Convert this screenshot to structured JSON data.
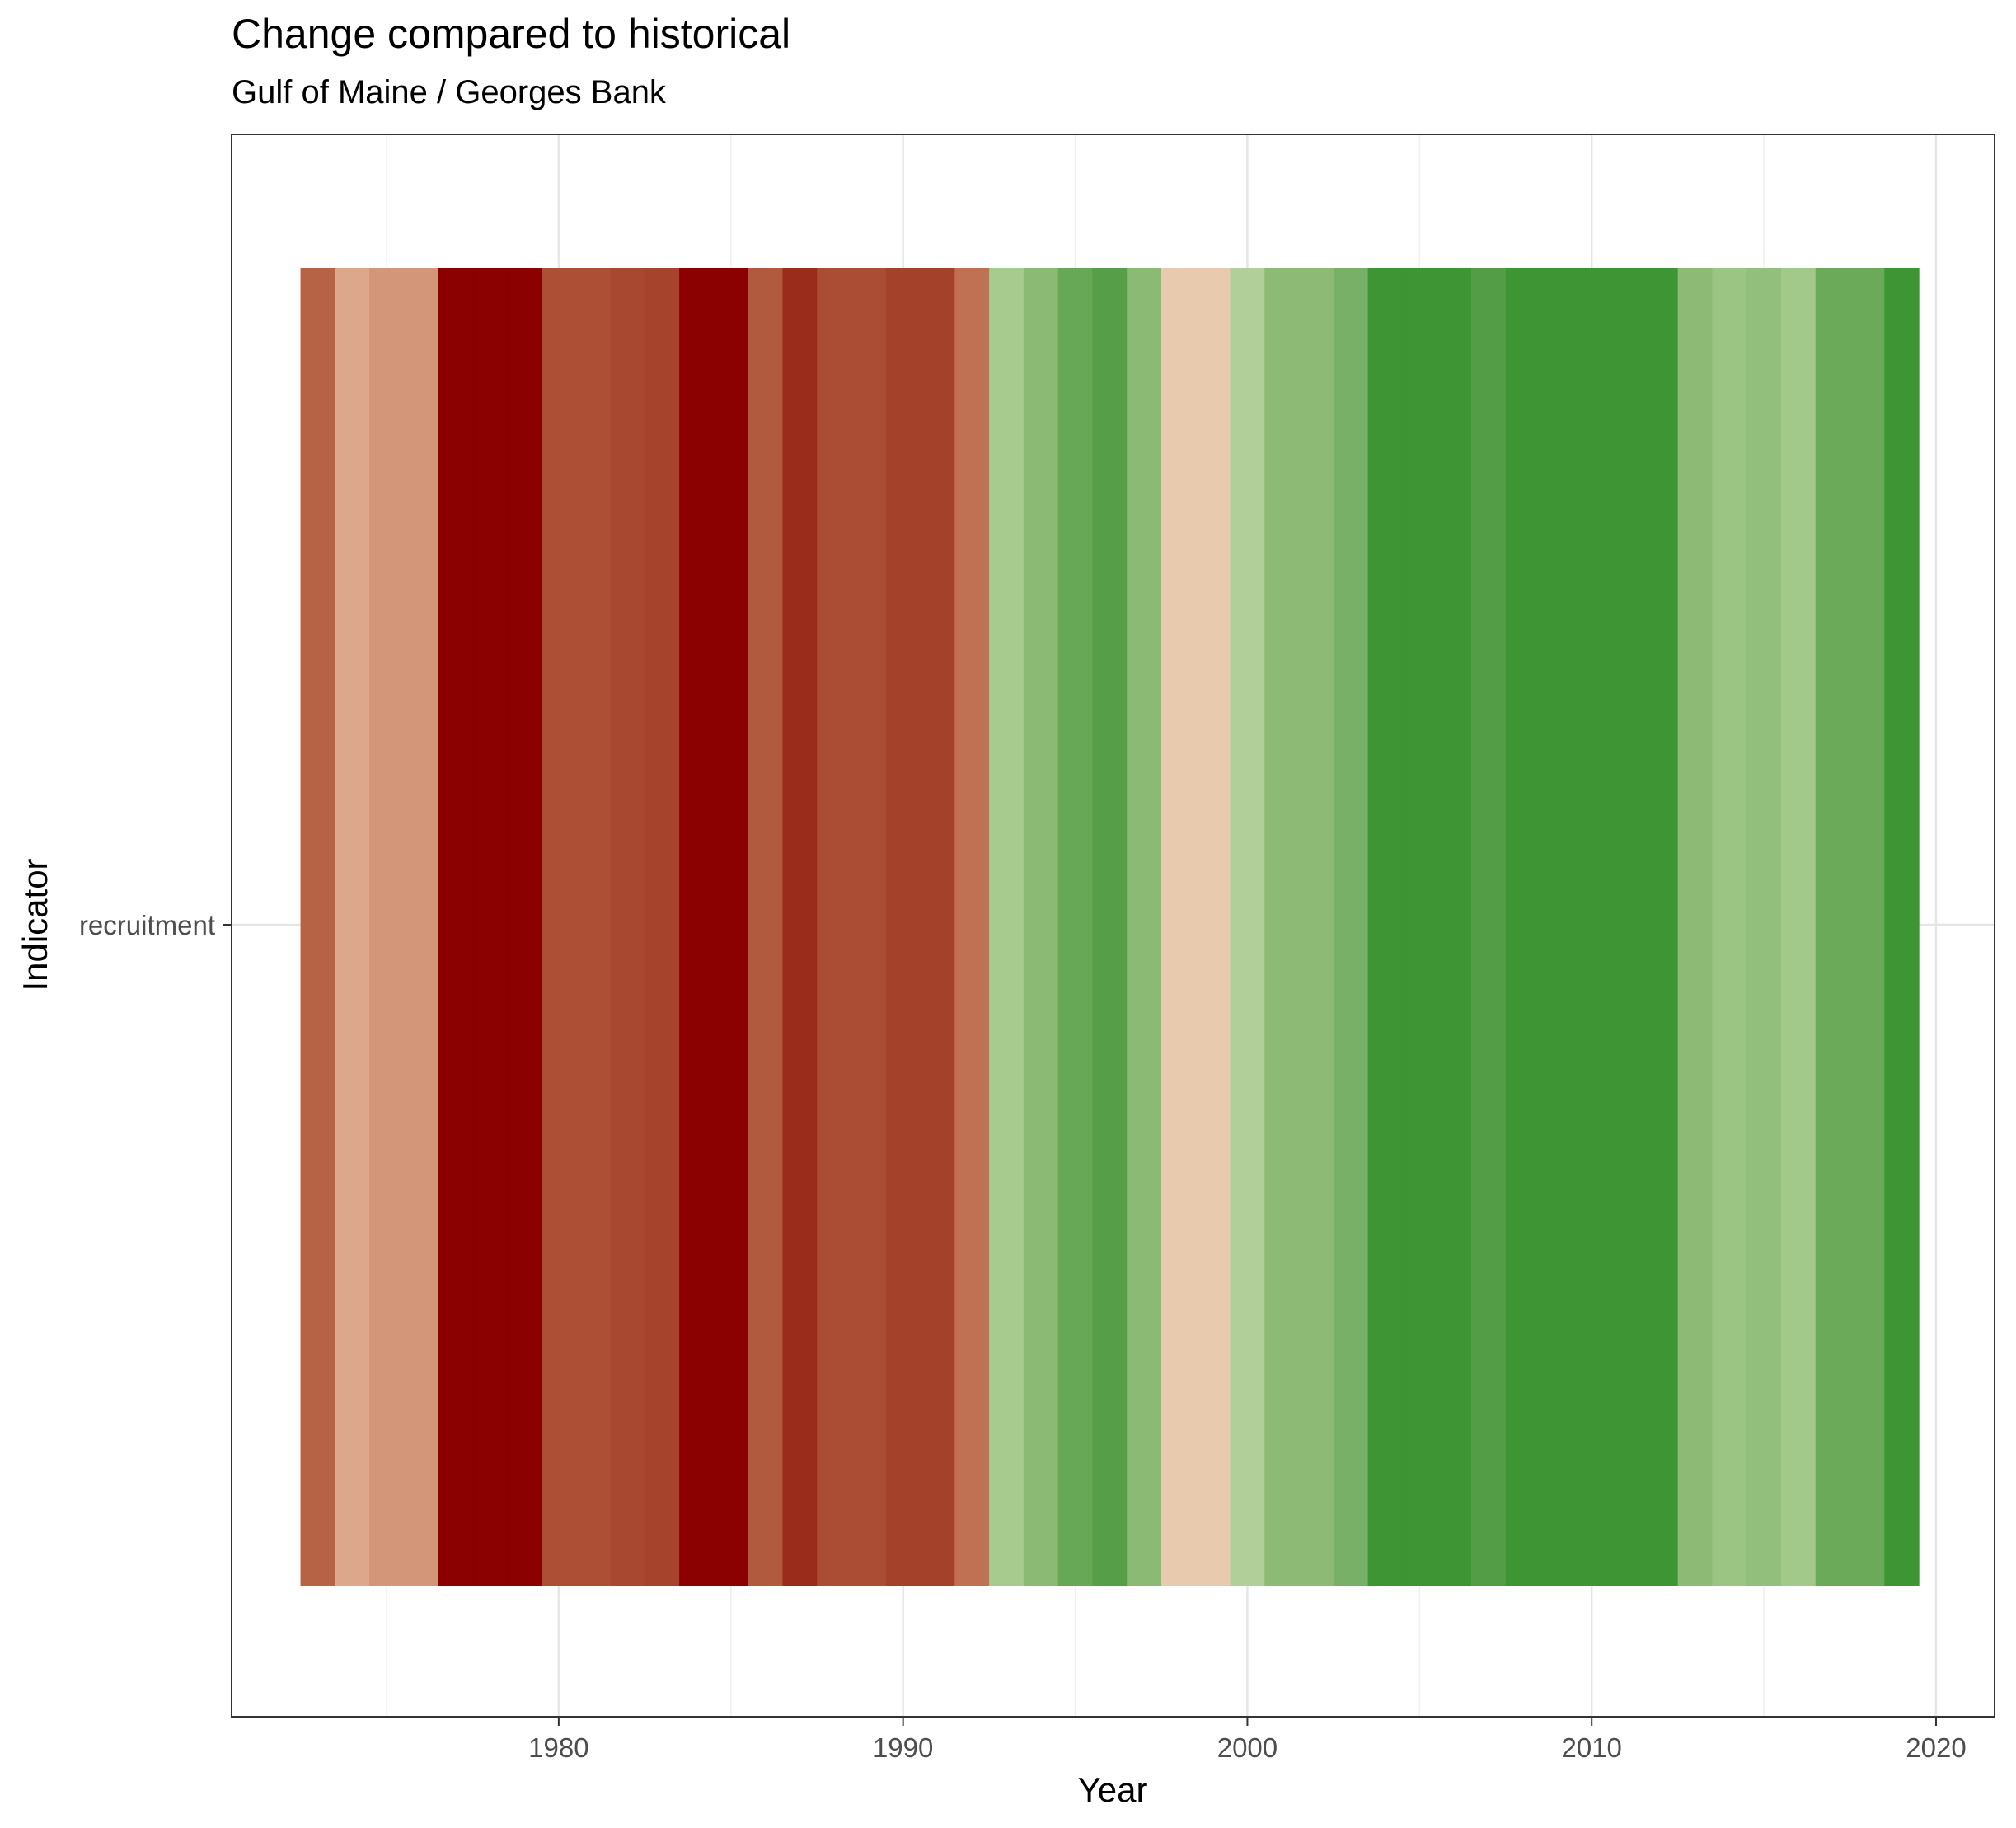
{
  "chart_data": {
    "type": "heatmap",
    "title": "Change compared to historical",
    "subtitle": "Gulf of Maine / Georges Bank",
    "xlabel": "Year",
    "ylabel": "Indicator",
    "xlim": [
      1970.5,
      2021.7
    ],
    "x_ticks": [
      "1980",
      "1990",
      "2000",
      "2010",
      "2020"
    ],
    "y_categories": [
      "recruitment"
    ],
    "grid": true,
    "legend": "none",
    "palette": {
      "strong_low": "#8b0000",
      "neutral": "#e8cbae",
      "strong_high": "#3d9534"
    },
    "cells": [
      {
        "year": 1973,
        "color": "#b66345"
      },
      {
        "year": 1974,
        "color": "#dca78a"
      },
      {
        "year": 1975,
        "color": "#d39678"
      },
      {
        "year": 1976,
        "color": "#d39678"
      },
      {
        "year": 1977,
        "color": "#8b0000"
      },
      {
        "year": 1978,
        "color": "#8b0000"
      },
      {
        "year": 1979,
        "color": "#8b0000"
      },
      {
        "year": 1980,
        "color": "#ac4f35"
      },
      {
        "year": 1981,
        "color": "#ac4f35"
      },
      {
        "year": 1982,
        "color": "#a94831"
      },
      {
        "year": 1983,
        "color": "#a6432d"
      },
      {
        "year": 1984,
        "color": "#8b0000"
      },
      {
        "year": 1985,
        "color": "#8b0000"
      },
      {
        "year": 1986,
        "color": "#b15a3e"
      },
      {
        "year": 1987,
        "color": "#992c1b"
      },
      {
        "year": 1988,
        "color": "#ab4c34"
      },
      {
        "year": 1989,
        "color": "#ab4c34"
      },
      {
        "year": 1990,
        "color": "#a4412a"
      },
      {
        "year": 1991,
        "color": "#a4412a"
      },
      {
        "year": 1992,
        "color": "#c07154"
      },
      {
        "year": 1993,
        "color": "#a7cb8e"
      },
      {
        "year": 1994,
        "color": "#8aba74"
      },
      {
        "year": 1995,
        "color": "#66a855"
      },
      {
        "year": 1996,
        "color": "#569e47"
      },
      {
        "year": 1997,
        "color": "#8aba74"
      },
      {
        "year": 1998,
        "color": "#e8cbae"
      },
      {
        "year": 1999,
        "color": "#e8cbae"
      },
      {
        "year": 2000,
        "color": "#b1cf98"
      },
      {
        "year": 2001,
        "color": "#8dbb76"
      },
      {
        "year": 2002,
        "color": "#8dbb76"
      },
      {
        "year": 2003,
        "color": "#77b066"
      },
      {
        "year": 2004,
        "color": "#3d9534"
      },
      {
        "year": 2005,
        "color": "#3d9534"
      },
      {
        "year": 2006,
        "color": "#3d9534"
      },
      {
        "year": 2007,
        "color": "#549d47"
      },
      {
        "year": 2008,
        "color": "#3d9534"
      },
      {
        "year": 2009,
        "color": "#3d9534"
      },
      {
        "year": 2010,
        "color": "#3d9534"
      },
      {
        "year": 2011,
        "color": "#3d9534"
      },
      {
        "year": 2012,
        "color": "#3d9534"
      },
      {
        "year": 2013,
        "color": "#8dbb76"
      },
      {
        "year": 2014,
        "color": "#9bc583"
      },
      {
        "year": 2015,
        "color": "#92bf7b"
      },
      {
        "year": 2016,
        "color": "#a2c98a"
      },
      {
        "year": 2017,
        "color": "#6aaa59"
      },
      {
        "year": 2018,
        "color": "#6aaa59"
      },
      {
        "year": 2019,
        "color": "#3d9534"
      }
    ]
  }
}
